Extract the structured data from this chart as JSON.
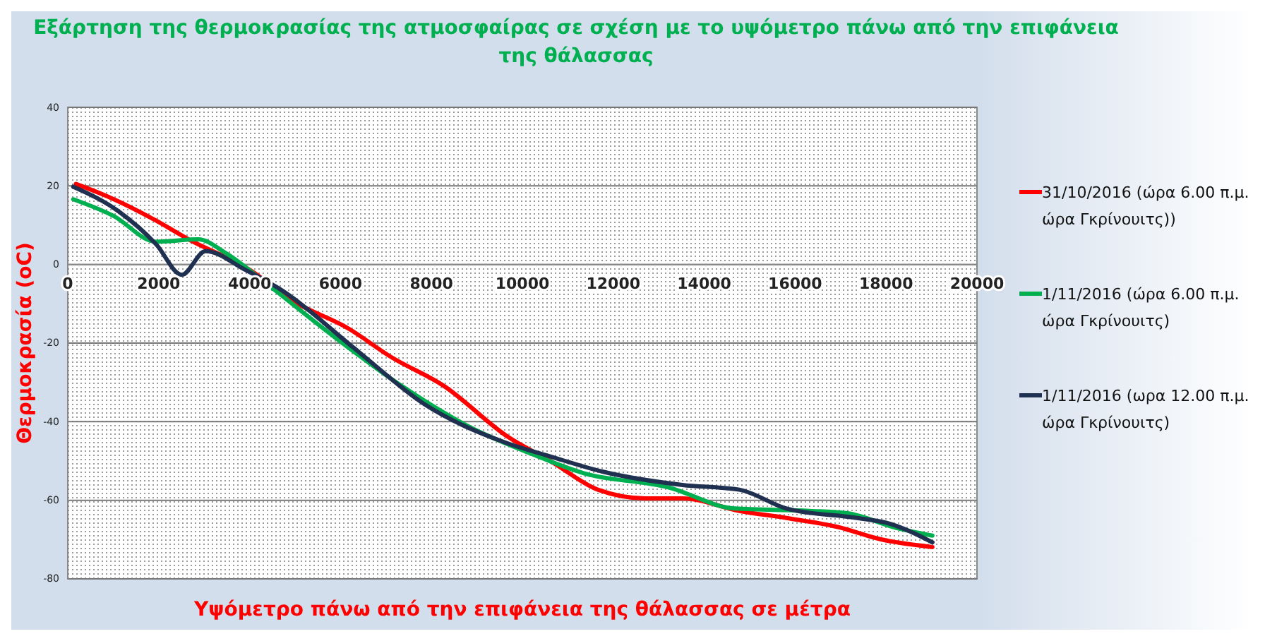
{
  "chart_data": {
    "type": "line",
    "title": "Εξάρτηση της θερμοκρασίας της ατμοσφαίρας σε σχέση με το υψόμετρο πάνω από την επιφάνεια της θάλασσας",
    "xlabel": "Υψόμετρο πάνω από την επιφάνεια της θάλασσας σε μέτρα",
    "ylabel": "Θερμοκρασία (oC)",
    "xlim": [
      0,
      20000
    ],
    "xticks": [
      0,
      2000,
      4000,
      6000,
      8000,
      10000,
      12000,
      14000,
      16000,
      18000,
      20000
    ],
    "ylim": [
      -80,
      40
    ],
    "yticks": [
      -80,
      -60,
      -40,
      -20,
      0,
      20,
      40
    ],
    "grid": "y",
    "legend": "right",
    "line_style": "solid",
    "marker": "none",
    "series": [
      {
        "name": "31/10/2016 (ώρα 6.00 π.μ. ώρα Γκρίνουιτς))",
        "color": "#ff0000",
        "x": [
          180,
          900,
          1940,
          2660,
          4010,
          4940,
          6190,
          7120,
          8260,
          9700,
          10630,
          11660,
          12700,
          13520,
          14770,
          15810,
          16940,
          17870,
          19020
        ],
        "values": [
          20.5,
          17.2,
          11.2,
          6.4,
          -1.4,
          -9.2,
          -16.4,
          -23.6,
          -30.8,
          -44,
          -50.1,
          -57.3,
          -59.5,
          -59.5,
          -62.7,
          -64.5,
          -66.8,
          -69.9,
          -71.9
        ]
      },
      {
        "name": "1/11/2016 (ώρα 6.00 π.μ. ώρα Γκρίνουιτς)",
        "color": "#00b050",
        "x": [
          120,
          1000,
          1940,
          2870,
          3490,
          4320,
          5770,
          7330,
          8880,
          10100,
          11350,
          13210,
          14670,
          16320,
          17150,
          18180,
          19020
        ],
        "values": [
          16.6,
          12.4,
          5.8,
          6.4,
          2.8,
          -4.4,
          -17.6,
          -30.8,
          -41.6,
          -47.7,
          -53.1,
          -56.7,
          -62.1,
          -62.7,
          -63.3,
          -66.9,
          -69
        ]
      },
      {
        "name": "1/11/2016 (ωρα 12.00 π.μ. ώρα Γκρίνουιτς)",
        "color": "#1f3050",
        "x": [
          120,
          1110,
          1940,
          2510,
          3030,
          3910,
          4740,
          6290,
          7850,
          9600,
          10630,
          11760,
          13520,
          14770,
          15810,
          17360,
          18000,
          19020
        ],
        "values": [
          19.8,
          13.6,
          5.2,
          -2.6,
          3.4,
          -1.4,
          -6.8,
          -21.2,
          -35.6,
          -45.2,
          -48.9,
          -52.7,
          -56.1,
          -57.3,
          -62.1,
          -64.5,
          -65.7,
          -70.7
        ]
      }
    ]
  }
}
